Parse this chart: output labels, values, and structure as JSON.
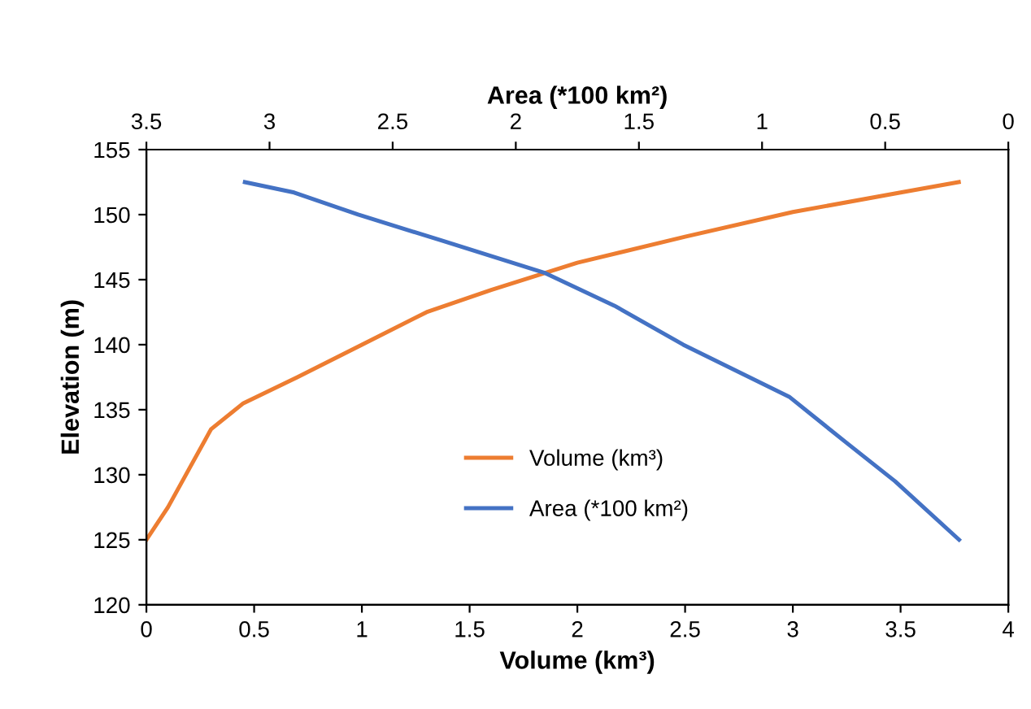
{
  "chart_data": {
    "type": "line",
    "xlabel": "Volume (km³)",
    "x2label": "Area (*100 km²)",
    "ylabel": "Elevation (m)",
    "xlim": [
      0,
      4
    ],
    "xticks": [
      0,
      0.5,
      1,
      1.5,
      2,
      2.5,
      3,
      3.5,
      4
    ],
    "x2lim": [
      3.5,
      0
    ],
    "x2ticks": [
      3.5,
      3,
      2.5,
      2,
      1.5,
      1,
      0.5,
      0
    ],
    "ylim": [
      120,
      155
    ],
    "yticks": [
      120,
      125,
      130,
      135,
      140,
      145,
      150,
      155
    ],
    "grid": false,
    "legend": "bottom",
    "marker": "none",
    "line_style": "solid",
    "series": [
      {
        "name": "Volume (km³)",
        "color": "#ed7d31",
        "x": [
          0,
          0.1,
          0.2,
          0.3,
          0.45,
          0.7,
          1.0,
          1.3,
          1.6,
          2.0,
          2.5,
          3.0,
          3.5,
          3.77
        ],
        "values": [
          125,
          127.5,
          130.5,
          133.5,
          135.5,
          137.5,
          140,
          142.5,
          144.2,
          146.3,
          148.3,
          150.2,
          151.7,
          152.5
        ]
      },
      {
        "name": "Area (*100 km²)",
        "color": "#4472c4",
        "axis": "x2",
        "x": [
          3.1,
          2.9,
          2.64,
          2.3,
          1.88,
          1.6,
          1.32,
          0.89,
          0.66,
          0.46,
          0.2
        ],
        "values": [
          152.5,
          151.7,
          150,
          148,
          145.5,
          143,
          140,
          136,
          132.5,
          129.5,
          125
        ]
      }
    ]
  }
}
